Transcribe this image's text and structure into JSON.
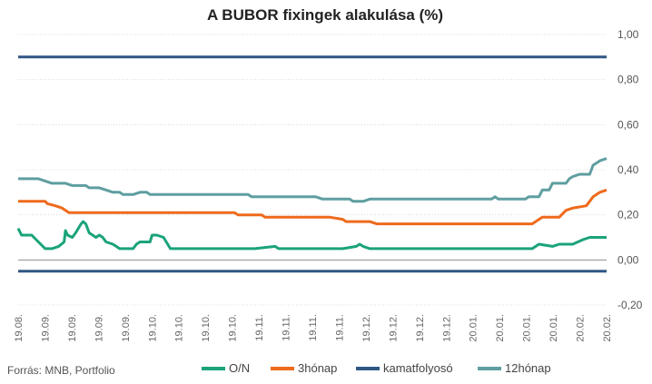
{
  "chart_data": {
    "type": "line",
    "title": "A BUBOR fixingek alakulása (%)",
    "source": "Forrás: MNB, Portfolio",
    "ylim": [
      -0.2,
      1.0
    ],
    "y_ticks": [
      "1,00",
      "0,80",
      "0,60",
      "0,40",
      "0,20",
      "0,00",
      "-0,20"
    ],
    "x_labels": [
      "19.08.",
      "19.09.",
      "19.09.",
      "19.09.",
      "19.09.",
      "19.10.",
      "19.10.",
      "19.10.",
      "19.10.",
      "19.11.",
      "19.11.",
      "19.11.",
      "19.11.",
      "19.12.",
      "19.12.",
      "19.12.",
      "19.12.",
      "20.01.",
      "20.01.",
      "20.01.",
      "20.01.",
      "20.02.",
      "20.02."
    ],
    "legend_position": "bottom",
    "grid": true,
    "series": [
      {
        "name": "O/N",
        "color": "#1aa37a",
        "points": [
          [
            0,
            0.14
          ],
          [
            0.5,
            0.11
          ],
          [
            2,
            0.11
          ],
          [
            3,
            0.08
          ],
          [
            4,
            0.05
          ],
          [
            5,
            0.05
          ],
          [
            6,
            0.06
          ],
          [
            6.8,
            0.08
          ],
          [
            7,
            0.13
          ],
          [
            7.3,
            0.11
          ],
          [
            8,
            0.1
          ],
          [
            8.5,
            0.12
          ],
          [
            9.3,
            0.16
          ],
          [
            9.6,
            0.17
          ],
          [
            10,
            0.16
          ],
          [
            10.5,
            0.12
          ],
          [
            11.5,
            0.1
          ],
          [
            12,
            0.11
          ],
          [
            12.5,
            0.1
          ],
          [
            13,
            0.08
          ],
          [
            14,
            0.07
          ],
          [
            14.5,
            0.06
          ],
          [
            15,
            0.05
          ],
          [
            17,
            0.05
          ],
          [
            17.5,
            0.07
          ],
          [
            18,
            0.08
          ],
          [
            19.5,
            0.08
          ],
          [
            19.8,
            0.11
          ],
          [
            20.5,
            0.11
          ],
          [
            21.5,
            0.1
          ],
          [
            22.5,
            0.05
          ],
          [
            35,
            0.05
          ],
          [
            38,
            0.06
          ],
          [
            38.5,
            0.05
          ],
          [
            48,
            0.05
          ],
          [
            50,
            0.06
          ],
          [
            50.5,
            0.07
          ],
          [
            51,
            0.06
          ],
          [
            52,
            0.05
          ],
          [
            76,
            0.05
          ],
          [
            77,
            0.07
          ],
          [
            79,
            0.06
          ],
          [
            80,
            0.07
          ],
          [
            82,
            0.07
          ],
          [
            83.5,
            0.09
          ],
          [
            84.5,
            0.1
          ],
          [
            87,
            0.1
          ]
        ]
      },
      {
        "name": "3hónap",
        "color": "#ee6a1c",
        "points": [
          [
            0,
            0.26
          ],
          [
            4,
            0.26
          ],
          [
            4.3,
            0.25
          ],
          [
            5.5,
            0.24
          ],
          [
            6.5,
            0.23
          ],
          [
            7,
            0.22
          ],
          [
            7.5,
            0.21
          ],
          [
            32,
            0.21
          ],
          [
            32.5,
            0.2
          ],
          [
            36,
            0.2
          ],
          [
            36.5,
            0.19
          ],
          [
            46,
            0.19
          ],
          [
            48,
            0.18
          ],
          [
            48.5,
            0.17
          ],
          [
            52,
            0.17
          ],
          [
            53,
            0.16
          ],
          [
            76,
            0.16
          ],
          [
            76.5,
            0.17
          ],
          [
            77.5,
            0.19
          ],
          [
            80,
            0.19
          ],
          [
            81,
            0.22
          ],
          [
            82,
            0.23
          ],
          [
            84,
            0.24
          ],
          [
            85,
            0.28
          ],
          [
            86,
            0.3
          ],
          [
            87,
            0.31
          ]
        ]
      },
      {
        "name": "kamatfolyosó",
        "color": "#2f5784",
        "points": [
          [
            0,
            0.9
          ],
          [
            87,
            0.9
          ]
        ]
      },
      {
        "name": "",
        "color": "#2f5784",
        "points": [
          [
            0,
            -0.05
          ],
          [
            87,
            -0.05
          ]
        ]
      },
      {
        "name": "12hónap",
        "color": "#5f9ea0",
        "points": [
          [
            0,
            0.36
          ],
          [
            3,
            0.36
          ],
          [
            4,
            0.35
          ],
          [
            5,
            0.34
          ],
          [
            7,
            0.34
          ],
          [
            8,
            0.33
          ],
          [
            10,
            0.33
          ],
          [
            10.5,
            0.32
          ],
          [
            12,
            0.32
          ],
          [
            13,
            0.31
          ],
          [
            14,
            0.3
          ],
          [
            15,
            0.3
          ],
          [
            15.5,
            0.29
          ],
          [
            17,
            0.29
          ],
          [
            18,
            0.3
          ],
          [
            19,
            0.3
          ],
          [
            19.5,
            0.29
          ],
          [
            34,
            0.29
          ],
          [
            34.5,
            0.28
          ],
          [
            44,
            0.28
          ],
          [
            45,
            0.27
          ],
          [
            49,
            0.27
          ],
          [
            49.5,
            0.26
          ],
          [
            51,
            0.26
          ],
          [
            52,
            0.27
          ],
          [
            70,
            0.27
          ],
          [
            70.5,
            0.28
          ],
          [
            71,
            0.27
          ],
          [
            75,
            0.27
          ],
          [
            75.5,
            0.28
          ],
          [
            77,
            0.28
          ],
          [
            77.5,
            0.31
          ],
          [
            78.5,
            0.31
          ],
          [
            79,
            0.34
          ],
          [
            81,
            0.34
          ],
          [
            81.5,
            0.36
          ],
          [
            82,
            0.37
          ],
          [
            83,
            0.38
          ],
          [
            84.5,
            0.38
          ],
          [
            85,
            0.42
          ],
          [
            85.5,
            0.43
          ],
          [
            86,
            0.44
          ],
          [
            87,
            0.45
          ]
        ]
      }
    ]
  }
}
